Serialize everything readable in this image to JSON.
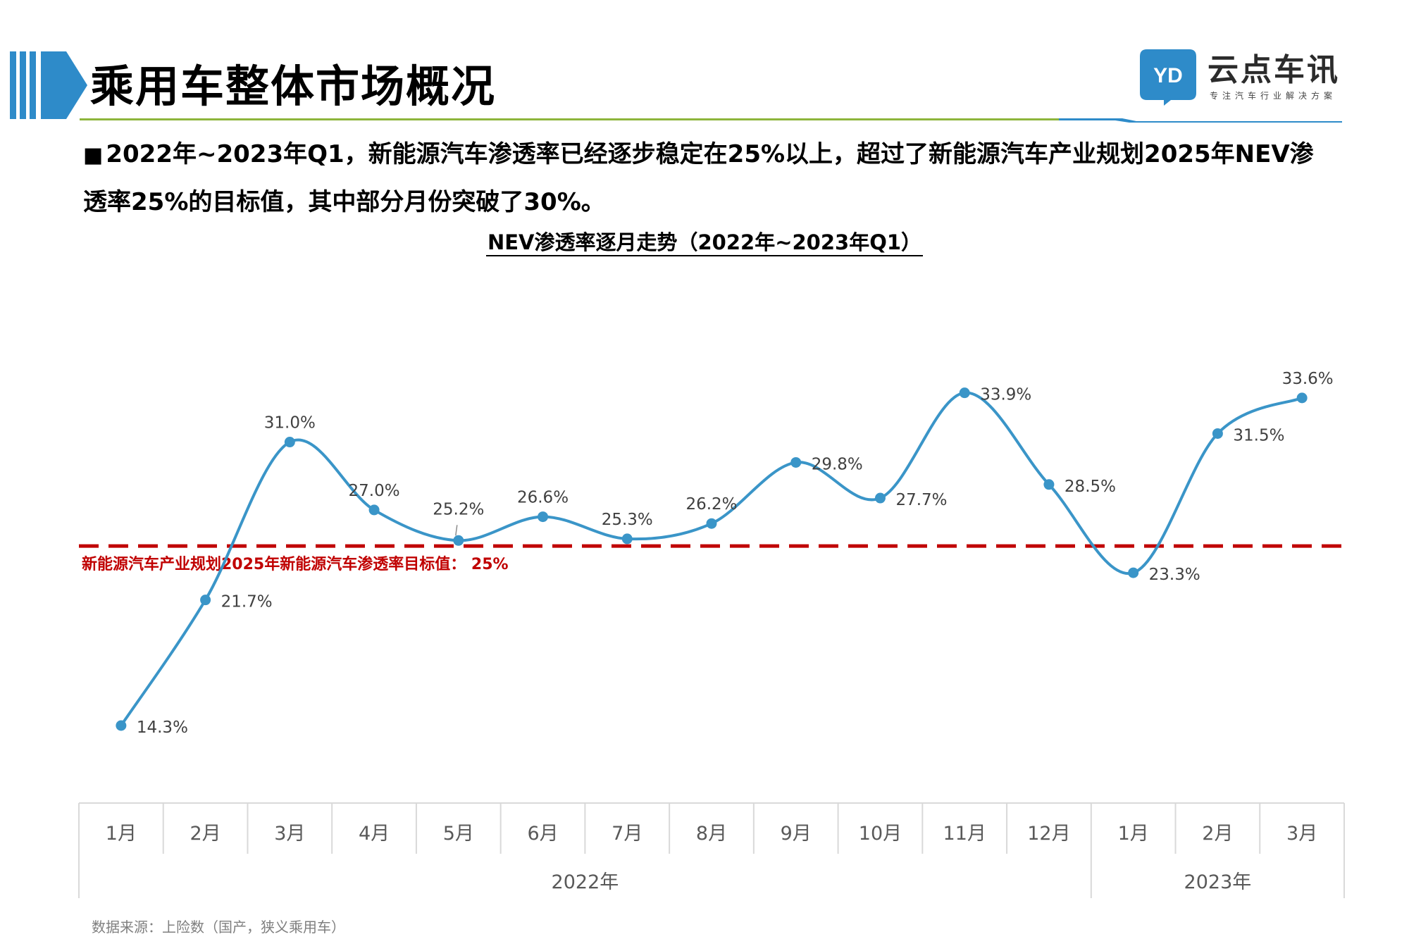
{
  "header": {
    "title": "乘用车整体市场概况",
    "logo_name": "云点车讯",
    "logo_mark": "YD",
    "logo_tagline": "专注汽车行业解决方案",
    "accent_color": "#2e8bc9",
    "rule_color": "#8db53c"
  },
  "headline": {
    "marker": "■",
    "text": "2022年~2023年Q1，新能源汽车渗透率已经逐步稳定在25%以上，超过了新能源汽车产业规划2025年NEV渗透率25%的目标值，其中部分月份突破了30%。"
  },
  "chart_data": {
    "type": "line",
    "title": "NEV渗透率逐月走势（2022年~2023年Q1）",
    "categories": [
      "1月",
      "2月",
      "3月",
      "4月",
      "5月",
      "6月",
      "7月",
      "8月",
      "9月",
      "10月",
      "11月",
      "12月",
      "1月",
      "2月",
      "3月"
    ],
    "category_groups": [
      {
        "label": "2022年",
        "count": 12
      },
      {
        "label": "2023年",
        "count": 3
      }
    ],
    "series": [
      {
        "values": [
          14.3,
          21.7,
          31.0,
          27.0,
          25.2,
          26.6,
          25.3,
          26.2,
          29.8,
          27.7,
          33.9,
          28.5,
          23.3,
          31.5,
          33.6
        ],
        "labels": [
          "14.3%",
          "21.7%",
          "31.0%",
          "27.0%",
          "25.2%",
          "26.6%",
          "25.3%",
          "26.2%",
          "29.8%",
          "27.7%",
          "33.9%",
          "28.5%",
          "23.3%",
          "31.5%",
          "33.6%"
        ],
        "color": "#3a95c8",
        "smooth": true
      }
    ],
    "target_line": {
      "value": 25,
      "label": "新能源汽车产业规划2025年新能源汽车渗透率目标值：  25%",
      "color": "#c00000",
      "style": "dashed"
    },
    "ylim": [
      12,
      36
    ],
    "grid": false,
    "legend": "none",
    "xlabel": "",
    "ylabel": ""
  },
  "footer": {
    "source": "数据来源：上险数（国产，狭义乘用车）"
  }
}
